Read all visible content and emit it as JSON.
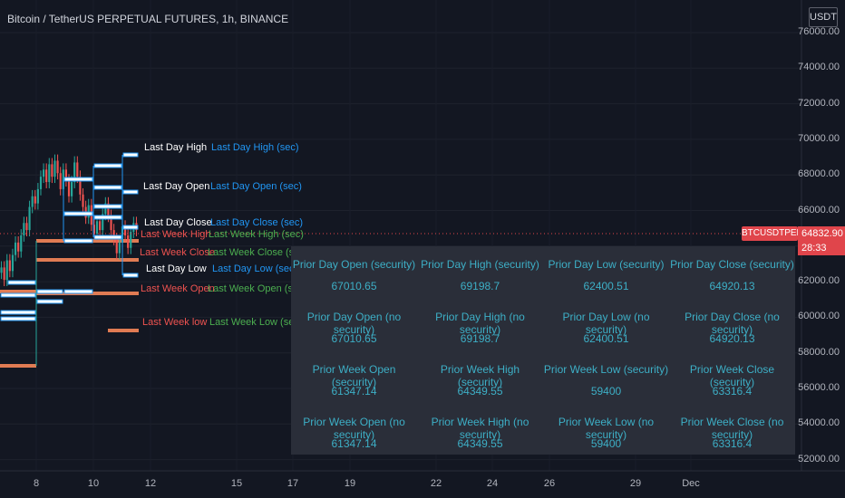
{
  "header": {
    "title": "Bitcoin / TetherUS PERPETUAL FUTURES, 1h, BINANCE",
    "unit": "USDT"
  },
  "price": {
    "last": "64832.90",
    "countdown": "28:33",
    "symbol": "BTCUSDTPERP"
  },
  "chart_data": {
    "type": "line",
    "title": "Bitcoin / TetherUS PERPETUAL FUTURES, 1h, BINANCE",
    "y_ticks": [
      "76000.00",
      "74000.00",
      "72000.00",
      "70000.00",
      "68000.00",
      "66000.00",
      "64000.00",
      "62000.00",
      "60000.00",
      "58000.00",
      "56000.00",
      "54000.00",
      "52000.00"
    ],
    "x_ticks": [
      "8",
      "10",
      "12",
      "15",
      "17",
      "19",
      "22",
      "24",
      "26",
      "29",
      "Dec"
    ],
    "ylim": [
      52000,
      76000
    ],
    "grid": true,
    "last_price": 64832.9,
    "levels": [
      {
        "name": "Last Day High",
        "label_sec": "Last Day High (sec)",
        "value": 69198.7,
        "color": "#ffffff",
        "sec_color": "#2196f3"
      },
      {
        "name": "Last Day Open",
        "label_sec": "Last Day Open (sec)",
        "value": 67010.65,
        "color": "#ffffff",
        "sec_color": "#2196f3"
      },
      {
        "name": "Last Day Close",
        "label_sec": "Last Day Close (sec)",
        "value": 64920.13,
        "color": "#ffffff",
        "sec_color": "#2196f3"
      },
      {
        "name": "Last Day Low",
        "label_sec": "Last Day Low (sec)",
        "value": 62400.51,
        "color": "#ffffff",
        "sec_color": "#2196f3"
      },
      {
        "name": "Last Week High",
        "label_sec": "Last Week High (sec)",
        "value": 64349.55,
        "color": "#ef5350",
        "sec_color": "#4caf50"
      },
      {
        "name": "Last Week Close",
        "label_sec": "Last Week Close (sec)",
        "value": 63316.4,
        "color": "#ef5350",
        "sec_color": "#4caf50"
      },
      {
        "name": "Last Week Open",
        "label_sec": "Last Week Open (sec)",
        "value": 61347.14,
        "color": "#ef5350",
        "sec_color": "#4caf50"
      },
      {
        "name": "Last Week low",
        "label_sec": "Last Week Low (sec)",
        "value": 59400,
        "color": "#ef5350",
        "sec_color": "#4caf50"
      }
    ]
  },
  "table": {
    "rows": [
      [
        "Prior Day Open (security)",
        "Prior Day High (security)",
        "Prior Day Low (security)",
        "Prior Day Close (security)"
      ],
      [
        "67010.65",
        "69198.7",
        "62400.51",
        "64920.13"
      ],
      [
        "Prior Day Open (no security)",
        "Prior Day High (no security)",
        "Prior Day Low (no security)",
        "Prior Day Close (no security)"
      ],
      [
        "67010.65",
        "69198.7",
        "62400.51",
        "64920.13"
      ],
      [
        "Prior Week Open (security)",
        "Prior Week High (security)",
        "Prior Week Low (security)",
        "Prior Week Close (security)"
      ],
      [
        "61347.14",
        "64349.55",
        "59400",
        "63316.4"
      ],
      [
        "Prior Week Open (no security)",
        "Prior Week High (no security)",
        "Prior Week Low (no security)",
        "Prior Week Close (no security)"
      ],
      [
        "61347.14",
        "64349.55",
        "59400",
        "63316.4"
      ]
    ]
  }
}
